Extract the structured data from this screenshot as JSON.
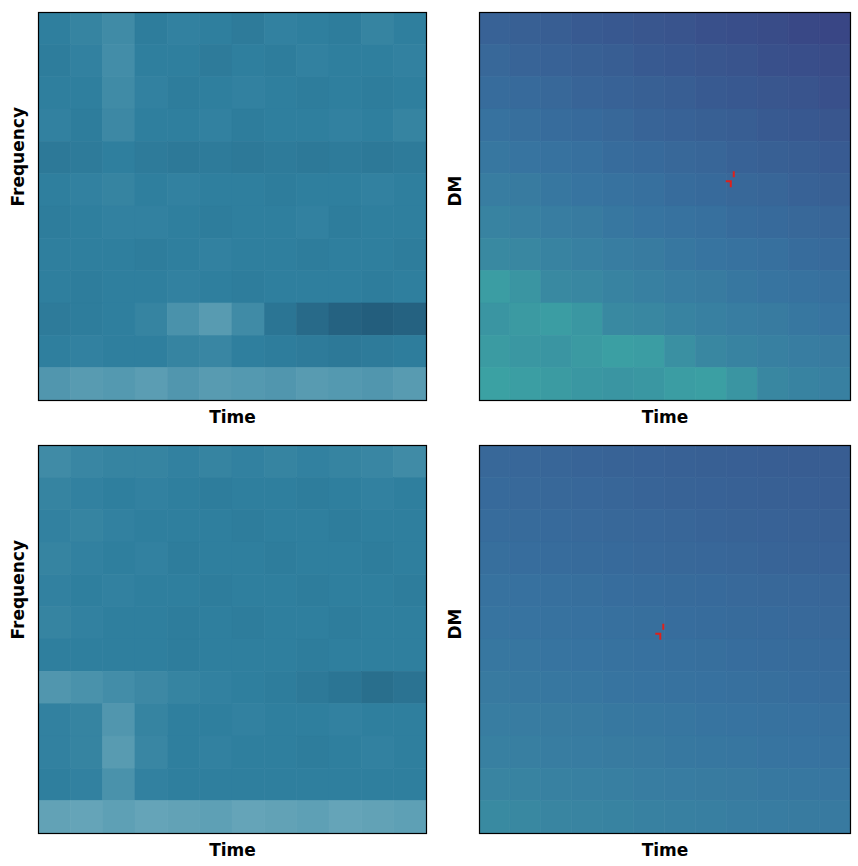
{
  "chart_data": [
    {
      "type": "heatmap",
      "xlabel": "Time",
      "ylabel": "Frequency",
      "xlim": [
        0,
        1
      ],
      "ylim": [
        0,
        1
      ],
      "tick_labels": false,
      "colors": [
        "#0a1836",
        "#2f7f9e",
        "#d8f4ef"
      ],
      "zlim": [
        0,
        1
      ],
      "cells": [
        [
          0.5,
          0.52,
          0.55,
          0.49,
          0.51,
          0.5,
          0.48,
          0.51,
          0.5,
          0.49,
          0.52,
          0.5
        ],
        [
          0.49,
          0.51,
          0.56,
          0.5,
          0.5,
          0.48,
          0.5,
          0.49,
          0.51,
          0.5,
          0.5,
          0.51
        ],
        [
          0.5,
          0.5,
          0.55,
          0.51,
          0.49,
          0.5,
          0.51,
          0.5,
          0.49,
          0.5,
          0.49,
          0.5
        ],
        [
          0.51,
          0.49,
          0.54,
          0.5,
          0.5,
          0.51,
          0.49,
          0.5,
          0.5,
          0.51,
          0.5,
          0.52
        ],
        [
          0.47,
          0.48,
          0.5,
          0.48,
          0.47,
          0.48,
          0.47,
          0.48,
          0.47,
          0.48,
          0.47,
          0.48
        ],
        [
          0.5,
          0.51,
          0.52,
          0.5,
          0.51,
          0.5,
          0.5,
          0.49,
          0.5,
          0.5,
          0.51,
          0.5
        ],
        [
          0.49,
          0.5,
          0.51,
          0.51,
          0.5,
          0.49,
          0.5,
          0.5,
          0.51,
          0.49,
          0.5,
          0.5
        ],
        [
          0.5,
          0.5,
          0.5,
          0.49,
          0.5,
          0.51,
          0.5,
          0.5,
          0.49,
          0.5,
          0.5,
          0.49
        ],
        [
          0.5,
          0.49,
          0.5,
          0.5,
          0.51,
          0.5,
          0.49,
          0.5,
          0.5,
          0.5,
          0.49,
          0.5
        ],
        [
          0.48,
          0.49,
          0.5,
          0.52,
          0.58,
          0.62,
          0.55,
          0.45,
          0.4,
          0.36,
          0.34,
          0.36
        ],
        [
          0.5,
          0.51,
          0.5,
          0.5,
          0.52,
          0.53,
          0.5,
          0.49,
          0.48,
          0.47,
          0.48,
          0.49
        ],
        [
          0.6,
          0.62,
          0.61,
          0.63,
          0.6,
          0.62,
          0.61,
          0.6,
          0.62,
          0.61,
          0.6,
          0.62
        ]
      ]
    },
    {
      "type": "heatmap",
      "xlabel": "Time",
      "ylabel": "DM",
      "xlim": [
        0,
        1
      ],
      "ylim": [
        0,
        1
      ],
      "tick_labels": false,
      "colors": [
        "#3a3b7e",
        "#3773a0",
        "#3db4a4"
      ],
      "zlim": [
        0,
        1
      ],
      "candidate": {
        "x": 0.68,
        "y": 0.57,
        "color": "#e0201a"
      },
      "cells": [
        [
          0.35,
          0.33,
          0.31,
          0.28,
          0.26,
          0.24,
          0.22,
          0.19,
          0.17,
          0.15,
          0.12,
          0.1
        ],
        [
          0.4,
          0.37,
          0.35,
          0.33,
          0.31,
          0.28,
          0.26,
          0.24,
          0.22,
          0.19,
          0.17,
          0.15
        ],
        [
          0.44,
          0.42,
          0.4,
          0.37,
          0.35,
          0.33,
          0.31,
          0.28,
          0.26,
          0.24,
          0.22,
          0.19
        ],
        [
          0.49,
          0.46,
          0.44,
          0.42,
          0.4,
          0.37,
          0.35,
          0.33,
          0.31,
          0.28,
          0.26,
          0.24
        ],
        [
          0.53,
          0.51,
          0.49,
          0.47,
          0.44,
          0.42,
          0.4,
          0.38,
          0.35,
          0.33,
          0.31,
          0.29
        ],
        [
          0.58,
          0.56,
          0.53,
          0.51,
          0.49,
          0.47,
          0.44,
          0.42,
          0.4,
          0.38,
          0.35,
          0.33
        ],
        [
          0.62,
          0.6,
          0.58,
          0.56,
          0.53,
          0.51,
          0.49,
          0.47,
          0.44,
          0.42,
          0.4,
          0.38
        ],
        [
          0.67,
          0.65,
          0.62,
          0.6,
          0.58,
          0.56,
          0.53,
          0.51,
          0.49,
          0.47,
          0.44,
          0.42
        ],
        [
          0.82,
          0.76,
          0.67,
          0.65,
          0.62,
          0.6,
          0.58,
          0.56,
          0.53,
          0.51,
          0.49,
          0.47
        ],
        [
          0.76,
          0.8,
          0.82,
          0.78,
          0.67,
          0.65,
          0.62,
          0.6,
          0.58,
          0.56,
          0.53,
          0.51
        ],
        [
          0.81,
          0.78,
          0.76,
          0.8,
          0.84,
          0.82,
          0.72,
          0.65,
          0.62,
          0.6,
          0.58,
          0.56
        ],
        [
          0.85,
          0.83,
          0.81,
          0.78,
          0.76,
          0.78,
          0.82,
          0.84,
          0.76,
          0.65,
          0.62,
          0.6
        ]
      ]
    },
    {
      "type": "heatmap",
      "xlabel": "Time",
      "ylabel": "Frequency",
      "xlim": [
        0,
        1
      ],
      "ylim": [
        0,
        1
      ],
      "tick_labels": false,
      "colors": [
        "#0a1836",
        "#2f7f9e",
        "#d8f4ef"
      ],
      "zlim": [
        0,
        1
      ],
      "cells": [
        [
          0.55,
          0.53,
          0.52,
          0.52,
          0.51,
          0.52,
          0.51,
          0.52,
          0.51,
          0.52,
          0.53,
          0.55
        ],
        [
          0.52,
          0.51,
          0.5,
          0.51,
          0.5,
          0.49,
          0.5,
          0.5,
          0.49,
          0.5,
          0.51,
          0.5
        ],
        [
          0.51,
          0.52,
          0.51,
          0.5,
          0.5,
          0.5,
          0.49,
          0.5,
          0.5,
          0.49,
          0.5,
          0.5
        ],
        [
          0.52,
          0.51,
          0.5,
          0.51,
          0.49,
          0.5,
          0.5,
          0.49,
          0.5,
          0.5,
          0.49,
          0.5
        ],
        [
          0.51,
          0.5,
          0.51,
          0.5,
          0.5,
          0.49,
          0.5,
          0.5,
          0.49,
          0.5,
          0.5,
          0.49
        ],
        [
          0.52,
          0.51,
          0.5,
          0.5,
          0.49,
          0.5,
          0.49,
          0.5,
          0.5,
          0.49,
          0.5,
          0.5
        ],
        [
          0.5,
          0.5,
          0.5,
          0.5,
          0.49,
          0.5,
          0.5,
          0.5,
          0.49,
          0.5,
          0.5,
          0.5
        ],
        [
          0.6,
          0.58,
          0.56,
          0.54,
          0.52,
          0.51,
          0.5,
          0.49,
          0.47,
          0.45,
          0.42,
          0.44
        ],
        [
          0.51,
          0.52,
          0.6,
          0.52,
          0.5,
          0.5,
          0.51,
          0.5,
          0.5,
          0.51,
          0.5,
          0.5
        ],
        [
          0.51,
          0.52,
          0.62,
          0.53,
          0.5,
          0.51,
          0.5,
          0.5,
          0.49,
          0.5,
          0.51,
          0.5
        ],
        [
          0.5,
          0.51,
          0.58,
          0.51,
          0.5,
          0.5,
          0.5,
          0.5,
          0.5,
          0.5,
          0.5,
          0.5
        ],
        [
          0.65,
          0.66,
          0.64,
          0.66,
          0.65,
          0.64,
          0.66,
          0.65,
          0.64,
          0.66,
          0.65,
          0.64
        ]
      ]
    },
    {
      "type": "heatmap",
      "xlabel": "Time",
      "ylabel": "DM",
      "xlim": [
        0,
        1
      ],
      "ylim": [
        0,
        1
      ],
      "tick_labels": false,
      "colors": [
        "#3a3b7e",
        "#3773a0",
        "#3db4a4"
      ],
      "zlim": [
        0,
        1
      ],
      "candidate": {
        "x": 0.49,
        "y": 0.52,
        "color": "#e0201a"
      },
      "cells": [
        [
          0.4,
          0.39,
          0.38,
          0.37,
          0.36,
          0.35,
          0.34,
          0.33,
          0.32,
          0.31,
          0.3,
          0.3
        ],
        [
          0.42,
          0.41,
          0.4,
          0.39,
          0.38,
          0.37,
          0.36,
          0.35,
          0.34,
          0.33,
          0.32,
          0.31
        ],
        [
          0.44,
          0.43,
          0.42,
          0.41,
          0.4,
          0.39,
          0.38,
          0.37,
          0.36,
          0.35,
          0.34,
          0.33
        ],
        [
          0.46,
          0.45,
          0.44,
          0.43,
          0.42,
          0.41,
          0.4,
          0.39,
          0.38,
          0.37,
          0.36,
          0.35
        ],
        [
          0.49,
          0.48,
          0.47,
          0.46,
          0.45,
          0.44,
          0.43,
          0.42,
          0.41,
          0.4,
          0.39,
          0.38
        ],
        [
          0.51,
          0.5,
          0.49,
          0.48,
          0.47,
          0.46,
          0.45,
          0.44,
          0.43,
          0.42,
          0.41,
          0.4
        ],
        [
          0.53,
          0.52,
          0.51,
          0.5,
          0.49,
          0.48,
          0.47,
          0.46,
          0.45,
          0.44,
          0.43,
          0.42
        ],
        [
          0.55,
          0.54,
          0.53,
          0.52,
          0.51,
          0.5,
          0.49,
          0.48,
          0.47,
          0.46,
          0.45,
          0.44
        ],
        [
          0.58,
          0.57,
          0.56,
          0.55,
          0.54,
          0.53,
          0.52,
          0.51,
          0.5,
          0.49,
          0.48,
          0.47
        ],
        [
          0.6,
          0.59,
          0.58,
          0.57,
          0.56,
          0.55,
          0.54,
          0.53,
          0.52,
          0.51,
          0.5,
          0.49
        ],
        [
          0.63,
          0.62,
          0.61,
          0.6,
          0.59,
          0.58,
          0.57,
          0.56,
          0.55,
          0.54,
          0.53,
          0.52
        ],
        [
          0.68,
          0.66,
          0.64,
          0.63,
          0.62,
          0.61,
          0.6,
          0.59,
          0.58,
          0.57,
          0.56,
          0.55
        ]
      ]
    }
  ]
}
